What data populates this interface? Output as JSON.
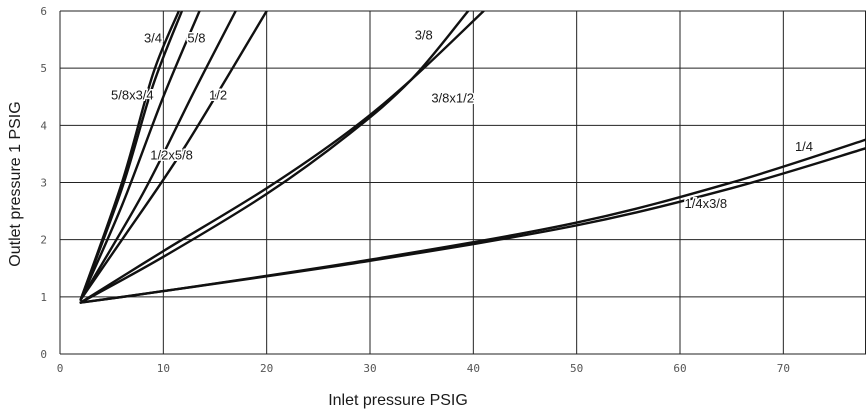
{
  "chart_data": {
    "type": "line",
    "title": "",
    "xlabel": "Inlet pressure PSIG",
    "ylabel": "Outlet pressure 1 PSIG",
    "xlim": [
      0,
      78
    ],
    "ylim": [
      0,
      6
    ],
    "x_ticks": [
      0,
      10,
      20,
      30,
      40,
      50,
      60,
      70
    ],
    "y_ticks": [
      0,
      1,
      2,
      3,
      4,
      5,
      6
    ],
    "grid": true,
    "legend": "none (inline labels)",
    "colors": {
      "line": "#111111",
      "grid": "#222222",
      "tick_text": "#555555",
      "background": "#ffffff"
    },
    "series": [
      {
        "name": "3/4",
        "x": [
          2,
          6,
          9,
          11.5
        ],
        "y": [
          0.95,
          3.0,
          4.9,
          6.0
        ]
      },
      {
        "name": "5/8",
        "x": [
          2,
          6,
          10,
          13.5
        ],
        "y": [
          0.95,
          2.6,
          4.5,
          6.0
        ]
      },
      {
        "name": "5/8x3/4",
        "x": [
          2,
          6,
          9,
          11.8
        ],
        "y": [
          0.95,
          2.9,
          4.7,
          6.0
        ]
      },
      {
        "name": "1/2",
        "x": [
          2,
          8,
          13,
          17
        ],
        "y": [
          0.95,
          2.8,
          4.6,
          6.0
        ]
      },
      {
        "name": "1/2x5/8",
        "x": [
          2,
          6,
          12,
          20
        ],
        "y": [
          0.95,
          2.0,
          3.6,
          6.0
        ]
      },
      {
        "name": "3/8",
        "x": [
          2,
          10,
          20,
          28,
          34,
          39.5
        ],
        "y": [
          0.9,
          1.7,
          2.8,
          3.85,
          4.8,
          6.0
        ]
      },
      {
        "name": "3/8x1/2",
        "x": [
          2,
          10,
          20,
          28,
          34,
          41
        ],
        "y": [
          0.9,
          1.8,
          2.9,
          3.9,
          4.8,
          6.0
        ]
      },
      {
        "name": "1/4",
        "x": [
          2,
          10,
          30,
          50,
          65,
          78
        ],
        "y": [
          0.9,
          1.1,
          1.65,
          2.3,
          3.0,
          3.75
        ]
      },
      {
        "name": "1/4x3/8",
        "x": [
          2,
          10,
          30,
          50,
          65,
          78
        ],
        "y": [
          0.9,
          1.1,
          1.63,
          2.25,
          2.9,
          3.6
        ]
      }
    ],
    "annotations": [
      {
        "text": "3/4",
        "x": 9.0,
        "y": 5.45
      },
      {
        "text": "5/8",
        "x": 13.2,
        "y": 5.45
      },
      {
        "text": "5/8x3/4",
        "x": 7.0,
        "y": 4.45
      },
      {
        "text": "1/2",
        "x": 15.3,
        "y": 4.45
      },
      {
        "text": "1/2x5/8",
        "x": 10.8,
        "y": 3.4
      },
      {
        "text": "3/8",
        "x": 35.2,
        "y": 5.5
      },
      {
        "text": "3/8x1/2",
        "x": 38.0,
        "y": 4.4
      },
      {
        "text": "1/4",
        "x": 72.0,
        "y": 3.55
      },
      {
        "text": "1/4x3/8",
        "x": 62.5,
        "y": 2.55
      }
    ]
  }
}
